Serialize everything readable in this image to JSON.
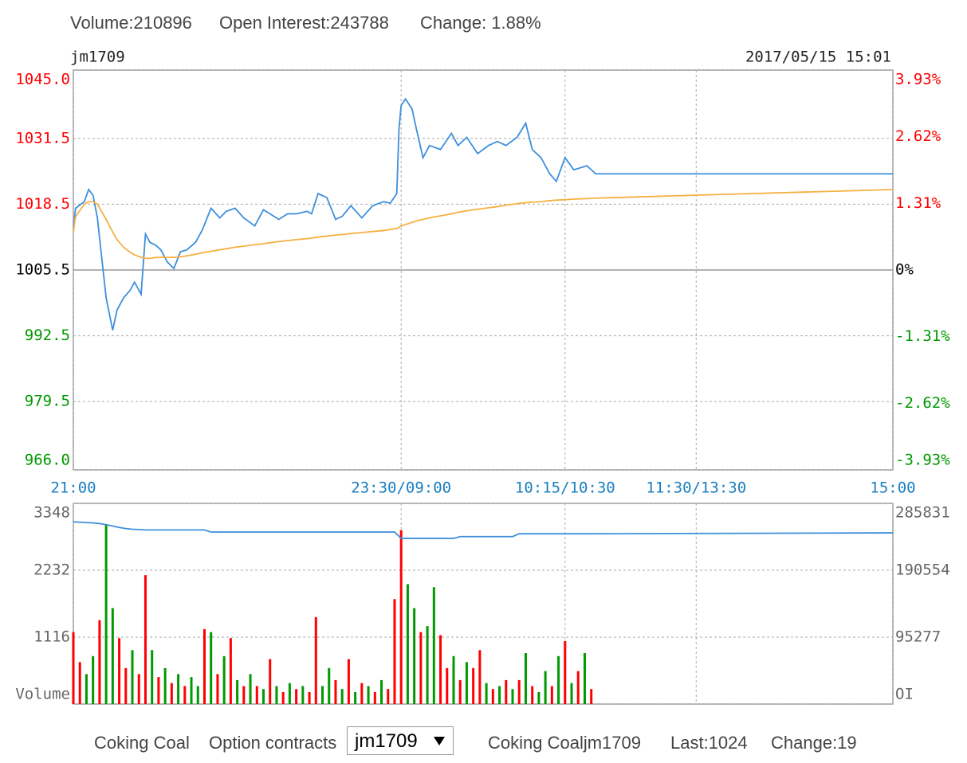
{
  "header": {
    "volume": "Volume:210896",
    "open_interest": "Open Interest:243788",
    "change": "Change: 1.88%",
    "symbol": "jm1709",
    "datetime": "2017/05/15 15:01"
  },
  "chart_data": [
    {
      "type": "line",
      "x": [
        0,
        1,
        5,
        7,
        9,
        11,
        13,
        15,
        18,
        20,
        23,
        26,
        28,
        31,
        33,
        35,
        38,
        40,
        43,
        46,
        49,
        52,
        56,
        59,
        63,
        67,
        70,
        74,
        78,
        83,
        87,
        90,
        94,
        98,
        102,
        107,
        109,
        112,
        116,
        120,
        123,
        127,
        132,
        137,
        142,
        145,
        148,
        149,
        150,
        152,
        155,
        157,
        160,
        163,
        168,
        173,
        176,
        180,
        185,
        190,
        194,
        198,
        203,
        207,
        210,
        214,
        218,
        221,
        225,
        229,
        235,
        239,
        375
      ],
      "xlim": [
        0,
        375
      ],
      "xticks": [
        {
          "value": 0,
          "label": "21:00"
        },
        {
          "value": 150,
          "label": "23:30/09:00"
        },
        {
          "value": 225,
          "label": "10:15/10:30"
        },
        {
          "value": 285,
          "label": "11:30/13:30"
        },
        {
          "value": 375,
          "label": "15:00"
        }
      ],
      "ylim": [
        966,
        1045
      ],
      "yticks": [
        {
          "value": 1045,
          "label": "1045.0"
        },
        1031.5,
        1018.5,
        1005.5,
        992.5,
        979.5,
        {
          "value": 966,
          "label": "966.0"
        }
      ],
      "y2lim": [
        -3.93,
        3.93
      ],
      "y2ticks": [
        {
          "value": 3.93,
          "label": "3.93%"
        },
        {
          "value": 2.62,
          "label": "2.62%"
        },
        {
          "value": 1.31,
          "label": "1.31%"
        },
        {
          "value": 0,
          "label": "0%"
        },
        {
          "value": -1.31,
          "label": "-1.31%"
        },
        {
          "value": -2.62,
          "label": "-2.62%"
        },
        {
          "value": -3.93,
          "label": "-3.93%"
        }
      ],
      "up_color": "#ff0000",
      "down_color": "#009900",
      "grid": true,
      "series": [
        {
          "color": "#3d8fdc",
          "values": [
            1013.4,
            1017.7,
            1019,
            1021.4,
            1020.3,
            1015.8,
            1007.9,
            1000,
            993.6,
            997.6,
            1000,
            1001.5,
            1003.1,
            1000.7,
            1012.6,
            1011,
            1010.3,
            1009.5,
            1007.1,
            1005.8,
            1009.1,
            1009.5,
            1011,
            1013.4,
            1017.7,
            1015.8,
            1017.1,
            1017.7,
            1015.8,
            1014.2,
            1017.4,
            1016.6,
            1015.5,
            1016.6,
            1016.6,
            1017.1,
            1016.6,
            1020.6,
            1019.8,
            1015.5,
            1016.1,
            1018.2,
            1015.8,
            1018.2,
            1019,
            1018.7,
            1020.6,
            1033.3,
            1038,
            1039.3,
            1037.3,
            1033.3,
            1027.7,
            1030.1,
            1029.3,
            1032.5,
            1030.1,
            1031.7,
            1028.5,
            1030.1,
            1030.9,
            1030.1,
            1031.7,
            1034.5,
            1029.3,
            1027.7,
            1024.5,
            1023,
            1027.7,
            1025.3,
            1026.1,
            1024.5,
            1024.5
          ]
        },
        {
          "color": "#f5b041",
          "values": [
            1013,
            1016,
            1018.5,
            1019,
            1019,
            1018.5,
            1017,
            1015.5,
            1013,
            1011.5,
            1010,
            1009,
            1008.5,
            1008,
            1007.8,
            1007.8,
            1008,
            1008,
            1008,
            1008,
            1008.1,
            1008.3,
            1008.6,
            1008.9,
            1009.2,
            1009.5,
            1009.7,
            1010,
            1010.2,
            1010.5,
            1010.7,
            1010.9,
            1011.1,
            1011.3,
            1011.5,
            1011.7,
            1011.8,
            1012,
            1012.2,
            1012.4,
            1012.5,
            1012.7,
            1012.9,
            1013.1,
            1013.3,
            1013.5,
            1013.7,
            1013.9,
            1014.2,
            1014.5,
            1014.9,
            1015.2,
            1015.5,
            1015.8,
            1016.2,
            1016.6,
            1016.9,
            1017.2,
            1017.5,
            1017.8,
            1018,
            1018.3,
            1018.6,
            1018.8,
            1018.9,
            1019,
            1019.2,
            1019.3,
            1019.4,
            1019.5,
            1019.6,
            1019.7,
            1021.4
          ]
        }
      ]
    },
    {
      "type": "bar",
      "x": [
        0,
        3,
        6,
        9,
        12,
        15,
        18,
        21,
        24,
        27,
        30,
        33,
        36,
        39,
        42,
        45,
        48,
        51,
        54,
        57,
        60,
        63,
        66,
        69,
        72,
        75,
        78,
        81,
        84,
        87,
        90,
        93,
        96,
        99,
        102,
        105,
        108,
        111,
        114,
        117,
        120,
        123,
        126,
        129,
        132,
        135,
        138,
        141,
        144,
        147,
        150,
        153,
        156,
        159,
        162,
        165,
        168,
        171,
        174,
        177,
        180,
        183,
        186,
        189,
        192,
        195,
        198,
        201,
        204,
        207,
        210,
        213,
        216,
        219,
        222,
        225,
        228,
        231,
        234,
        237,
        375
      ],
      "xlim": [
        0,
        375
      ],
      "ylim": [
        0,
        3348
      ],
      "yticks": [
        {
          "value": 0,
          "label": "Volume"
        },
        1116,
        2232,
        3348
      ],
      "y2lim": [
        0,
        285831
      ],
      "y2ticks": [
        {
          "value": 0,
          "label": "OI"
        },
        95277,
        190554,
        285831
      ],
      "grid": true,
      "series": [
        {
          "color": "#ff0000",
          "values": [
            1200,
            700,
            null,
            null,
            1400,
            null,
            null,
            1100,
            600,
            null,
            500,
            2150,
            null,
            450,
            null,
            350,
            null,
            300,
            null,
            null,
            1250,
            null,
            500,
            null,
            1100,
            null,
            300,
            null,
            300,
            null,
            750,
            null,
            200,
            null,
            250,
            null,
            200,
            1450,
            null,
            null,
            400,
            null,
            750,
            null,
            350,
            null,
            200,
            null,
            250,
            1750,
            2900,
            null,
            null,
            1200,
            null,
            null,
            1150,
            600,
            null,
            400,
            null,
            600,
            900,
            null,
            250,
            null,
            400,
            null,
            400,
            null,
            300,
            null,
            null,
            300,
            null,
            1050,
            null,
            550,
            null,
            250,
            null
          ]
        },
        {
          "color": "#009900",
          "values": [
            null,
            null,
            500,
            800,
            null,
            3000,
            1600,
            null,
            null,
            900,
            null,
            null,
            900,
            null,
            600,
            null,
            500,
            null,
            450,
            300,
            null,
            1200,
            null,
            800,
            null,
            400,
            null,
            500,
            null,
            250,
            null,
            300,
            null,
            350,
            null,
            300,
            null,
            null,
            300,
            600,
            null,
            250,
            null,
            200,
            null,
            300,
            null,
            400,
            null,
            null,
            null,
            2000,
            1600,
            null,
            1300,
            1950,
            null,
            null,
            800,
            null,
            700,
            null,
            null,
            350,
            null,
            300,
            null,
            250,
            null,
            850,
            null,
            200,
            550,
            null,
            800,
            null,
            350,
            null,
            850,
            null,
            null
          ]
        },
        {
          "color": "#3d8fdc",
          "axis": "y2",
          "type": "line",
          "values": [
            259500,
            259000,
            258500,
            258000,
            257000,
            255500,
            253500,
            251500,
            250000,
            249000,
            248500,
            248000,
            248000,
            248000,
            248000,
            248000,
            248000,
            248000,
            248000,
            248000,
            248000,
            245000,
            245000,
            245000,
            245000,
            245000,
            245000,
            245000,
            245000,
            245000,
            245000,
            245000,
            245000,
            245000,
            245000,
            245000,
            245000,
            245000,
            245000,
            245000,
            245000,
            245000,
            245000,
            245000,
            245000,
            245000,
            245000,
            245000,
            245000,
            245000,
            236000,
            236000,
            236000,
            236000,
            236000,
            236000,
            236000,
            236000,
            236000,
            238500,
            238500,
            238500,
            238500,
            238500,
            238500,
            238500,
            238500,
            238500,
            242500,
            242500,
            242500,
            242500,
            242500,
            242500,
            242500,
            242500,
            242500,
            242500,
            242500,
            242500,
            243788
          ]
        }
      ]
    }
  ],
  "footer": {
    "product": "Coking Coal",
    "option_label": "Option contracts",
    "select": "jm1709",
    "info": "Coking Coaljm1709",
    "last": "Last:1024",
    "change": "Change:19"
  }
}
